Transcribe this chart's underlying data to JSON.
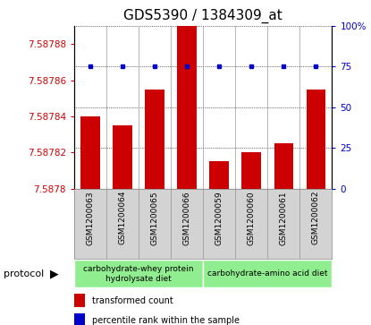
{
  "title": "GDS5390 / 1384309_at",
  "samples": [
    "GSM1200063",
    "GSM1200064",
    "GSM1200065",
    "GSM1200066",
    "GSM1200059",
    "GSM1200060",
    "GSM1200061",
    "GSM1200062"
  ],
  "bar_values": [
    7.58784,
    7.587835,
    7.587855,
    7.58789,
    7.587815,
    7.58782,
    7.587825,
    7.587855
  ],
  "percentile_values": [
    75,
    75,
    75,
    75,
    75,
    75,
    75,
    75
  ],
  "ylim_left": [
    7.5878,
    7.58789
  ],
  "ylim_right": [
    0,
    100
  ],
  "yticks_left": [
    7.5878,
    7.58782,
    7.58784,
    7.58786,
    7.58788
  ],
  "yticks_right": [
    0,
    25,
    50,
    75,
    100
  ],
  "ytick_labels_right": [
    "0",
    "25",
    "50",
    "75",
    "100%"
  ],
  "bar_color": "#cc0000",
  "percentile_color": "#0000cc",
  "group1_label": "carbohydrate-whey protein\nhydrolysate diet",
  "group2_label": "carbohydrate-amino acid diet",
  "group_color": "#90ee90",
  "sample_bg_color": "#d3d3d3",
  "legend_bar_label": "transformed count",
  "legend_dot_label": "percentile rank within the sample",
  "protocol_label": "protocol",
  "left_tick_color": "#cc0000",
  "right_tick_color": "#0000cc",
  "title_fontsize": 11,
  "tick_fontsize": 7.5,
  "sample_label_fontsize": 6.5,
  "group_label_fontsize": 6.5,
  "legend_fontsize": 7,
  "protocol_fontsize": 8
}
